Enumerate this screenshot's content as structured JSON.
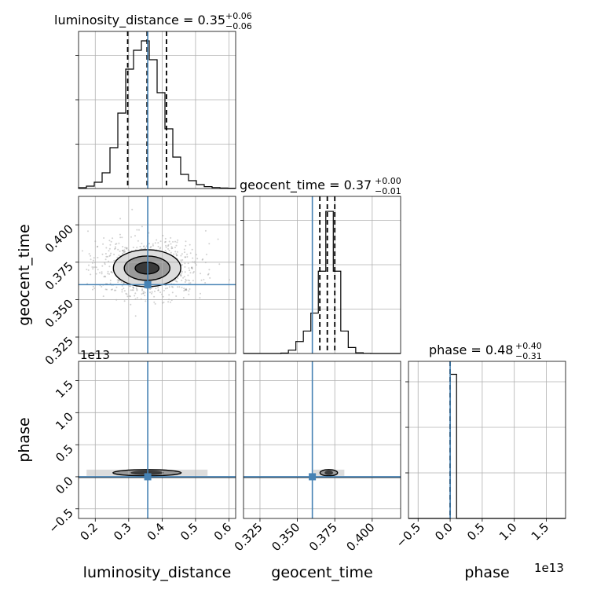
{
  "chart_data": {
    "type": "corner",
    "parameters": [
      "luminosity_distance",
      "geocent_time",
      "phase"
    ],
    "axis_labels": {
      "luminosity_distance": "luminosity_distance",
      "geocent_time": "geocent_time",
      "phase": "phase"
    },
    "axis_ranges": {
      "luminosity_distance": [
        0.15,
        0.62
      ],
      "geocent_time": [
        0.314,
        0.419
      ],
      "phase": [
        -6500000000000.0,
        18000000000000.0
      ]
    },
    "ticks": {
      "luminosity_distance": [
        {
          "value": 0.2,
          "label": "0.2"
        },
        {
          "value": 0.3,
          "label": "0.3"
        },
        {
          "value": 0.4,
          "label": "0.4"
        },
        {
          "value": 0.5,
          "label": "0.5"
        },
        {
          "value": 0.6,
          "label": "0.6"
        }
      ],
      "geocent_time": [
        {
          "value": 0.325,
          "label": "0.325"
        },
        {
          "value": 0.35,
          "label": "0.350"
        },
        {
          "value": 0.375,
          "label": "0.375"
        },
        {
          "value": 0.4,
          "label": "0.400"
        }
      ],
      "phase": [
        {
          "value": -5000000000000.0,
          "label": "−0.5"
        },
        {
          "value": 0.0,
          "label": "0.0"
        },
        {
          "value": 5000000000000.0,
          "label": "0.5"
        },
        {
          "value": 10000000000000.0,
          "label": "1.0"
        },
        {
          "value": 15000000000000.0,
          "label": "1.5"
        }
      ]
    },
    "offset_labels": {
      "phase_y": "1e13",
      "phase_x": "1e13"
    },
    "titles": [
      {
        "param": "luminosity_distance",
        "main": "luminosity_distance = 0.35",
        "sup": "+0.06",
        "sub": "−0.06"
      },
      {
        "param": "geocent_time",
        "main": "geocent_time = 0.37",
        "sup": "+0.00",
        "sub": "−0.01"
      },
      {
        "param": "phase",
        "main": "phase = 0.48",
        "sup": "+0.40",
        "sub": "−0.31"
      }
    ],
    "truths": {
      "luminosity_distance": 0.357,
      "geocent_time": 0.36,
      "phase": 0.0
    },
    "quantiles": {
      "luminosity_distance": [
        0.297,
        0.355,
        0.413
      ],
      "geocent_time": [
        0.365,
        0.37,
        0.375
      ],
      "phase": [
        0.0,
        0.0,
        0.0
      ]
    },
    "histograms": {
      "luminosity_distance": {
        "edges": [
          0.15,
          0.1735,
          0.197,
          0.2205,
          0.244,
          0.2675,
          0.291,
          0.3145,
          0.338,
          0.3615,
          0.385,
          0.4085,
          0.432,
          0.4555,
          0.479,
          0.5025,
          0.526,
          0.5495,
          0.573,
          0.5965,
          0.62
        ],
        "counts": [
          0.5,
          1.5,
          4,
          10,
          26,
          48,
          76,
          88,
          94,
          82,
          61,
          38,
          20,
          9,
          5,
          2.5,
          1.2,
          0.6,
          0.3,
          0.2
        ],
        "ymax": 100
      },
      "geocent_time": {
        "edges": [
          0.314,
          0.319,
          0.324,
          0.329,
          0.334,
          0.339,
          0.344,
          0.349,
          0.354,
          0.359,
          0.364,
          0.369,
          0.374,
          0.379,
          0.384,
          0.389,
          0.394,
          0.399,
          0.404,
          0.409,
          0.414,
          0.419
        ],
        "counts": [
          0,
          0,
          0,
          0,
          0,
          0.3,
          2.2,
          8,
          15,
          27,
          55,
          95,
          55,
          15,
          4,
          0.5,
          0.1,
          0,
          0,
          0,
          0
        ],
        "ymax": 105
      },
      "phase": {
        "edges": [
          -6500000000000.0,
          -0.0,
          1000000000000.0,
          18000000000000.0
        ],
        "counts": [
          0,
          100,
          0
        ],
        "ymax": 109
      }
    },
    "density_2d": {
      "geocent_time_vs_luminosity_distance": {
        "center": [
          0.355,
          0.371
        ],
        "spread": [
          0.065,
          0.0065
        ]
      },
      "phase_vs_luminosity_distance": {
        "center": [
          0.355,
          500000000000.0
        ],
        "spread": [
          0.06,
          500000000000.0
        ]
      },
      "phase_vs_geocent_time": {
        "center": [
          0.371,
          500000000000.0
        ],
        "spread": [
          0.006,
          500000000000.0
        ]
      }
    }
  }
}
